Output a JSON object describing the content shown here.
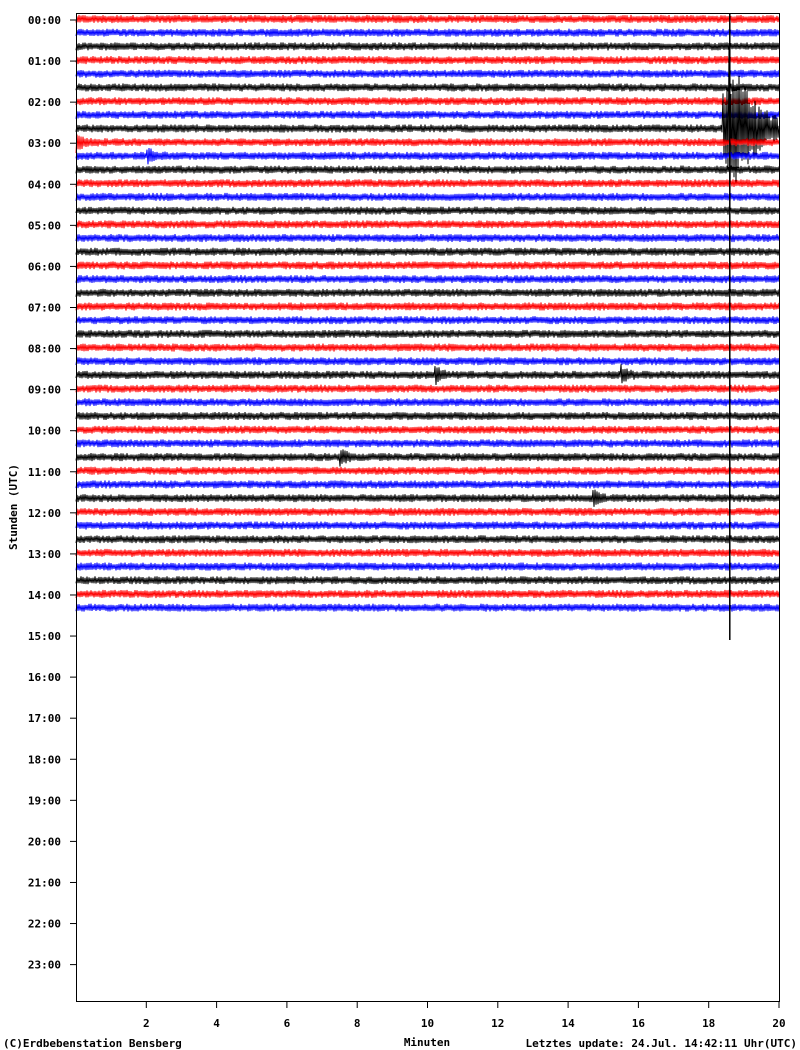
{
  "chart_data": {
    "type": "line",
    "title": "",
    "xlabel": "Minuten",
    "ylabel": "Stunden (UTC)",
    "xlim": [
      0,
      20
    ],
    "x_ticks": [
      "2",
      "4",
      "6",
      "8",
      "10",
      "12",
      "14",
      "16",
      "18",
      "20"
    ],
    "y_ticks": [
      "00:00",
      "01:00",
      "02:00",
      "03:00",
      "04:00",
      "05:00",
      "06:00",
      "07:00",
      "08:00",
      "09:00",
      "10:00",
      "11:00",
      "12:00",
      "13:00",
      "14:00",
      "15:00",
      "16:00",
      "17:00",
      "18:00",
      "19:00",
      "20:00",
      "21:00",
      "22:00",
      "23:00"
    ],
    "trace_minutes": 20,
    "trace_count": 44,
    "trace_colors": [
      "#ff0000",
      "#0000ff",
      "#000000"
    ],
    "events": [
      {
        "trace_start": "02:40",
        "minute": 18.4,
        "amplitude": "very large",
        "duration_min": 1.6
      },
      {
        "trace_start": "03:00",
        "minute": 0.0,
        "amplitude": "small",
        "duration_min": 1.4
      },
      {
        "trace_start": "03:20",
        "minute": 2.0,
        "amplitude": "small",
        "duration_min": 1.8
      },
      {
        "trace_start": "08:40",
        "minute": 10.2,
        "amplitude": "small",
        "duration_min": 0.4
      },
      {
        "trace_start": "08:40",
        "minute": 15.5,
        "amplitude": "small",
        "duration_min": 0.4
      },
      {
        "trace_start": "10:40",
        "minute": 7.5,
        "amplitude": "small",
        "duration_min": 0.4
      },
      {
        "trace_start": "11:40",
        "minute": 14.7,
        "amplitude": "small",
        "duration_min": 0.4
      }
    ],
    "spike_line_minute": 18.6,
    "grid": false,
    "legend": "none"
  },
  "footer": {
    "copyright": "(C)Erdbebenstation Bensberg",
    "update": "Letztes update: 24.Jul. 14:42:11 Uhr(UTC)"
  }
}
